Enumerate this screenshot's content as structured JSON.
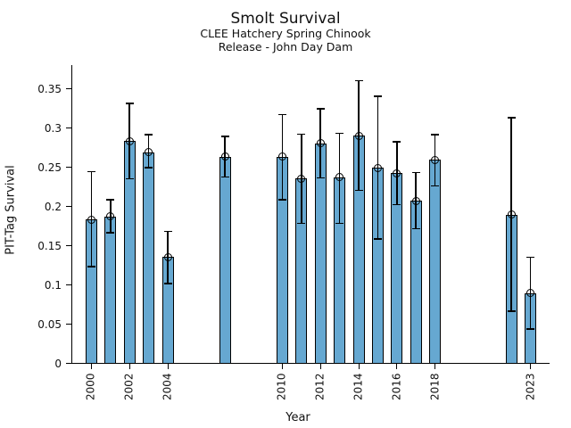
{
  "chart_data": {
    "type": "bar",
    "title": "Smolt Survival",
    "subtitle": [
      "CLEE Hatchery Spring Chinook",
      "Release - John Day Dam"
    ],
    "xlabel": "Year",
    "ylabel": "PIT-Tag Survival",
    "xlim": [
      1999,
      2024
    ],
    "ylim": [
      0,
      0.38
    ],
    "grid": false,
    "legend": "none",
    "bar_color": "#66a8d1",
    "bar_edge_color": "#000000",
    "error_bar_color": "#000000",
    "marker_style": "open-circle",
    "yticks": [
      {
        "value": 0,
        "label": "0"
      },
      {
        "value": 0.05,
        "label": "0.05"
      },
      {
        "value": 0.1,
        "label": "0.1"
      },
      {
        "value": 0.15,
        "label": "0.15"
      },
      {
        "value": 0.2,
        "label": "0.2"
      },
      {
        "value": 0.25,
        "label": "0.25"
      },
      {
        "value": 0.3,
        "label": "0.3"
      },
      {
        "value": 0.35,
        "label": "0.35"
      }
    ],
    "xticks": [
      {
        "value": 2000,
        "label": "2000"
      },
      {
        "value": 2002,
        "label": "2002"
      },
      {
        "value": 2004,
        "label": "2004"
      },
      {
        "value": 2010,
        "label": "2010"
      },
      {
        "value": 2012,
        "label": "2012"
      },
      {
        "value": 2014,
        "label": "2014"
      },
      {
        "value": 2016,
        "label": "2016"
      },
      {
        "value": 2018,
        "label": "2018"
      },
      {
        "value": 2023,
        "label": "2023"
      }
    ],
    "points": [
      {
        "year": 2000,
        "value": 0.183,
        "err_lo": 0.123,
        "err_hi": 0.244
      },
      {
        "year": 2001,
        "value": 0.187,
        "err_lo": 0.166,
        "err_hi": 0.208
      },
      {
        "year": 2002,
        "value": 0.283,
        "err_lo": 0.235,
        "err_hi": 0.331
      },
      {
        "year": 2003,
        "value": 0.269,
        "err_lo": 0.249,
        "err_hi": 0.291
      },
      {
        "year": 2004,
        "value": 0.135,
        "err_lo": 0.101,
        "err_hi": 0.168
      },
      {
        "year": 2007,
        "value": 0.263,
        "err_lo": 0.237,
        "err_hi": 0.289
      },
      {
        "year": 2010,
        "value": 0.263,
        "err_lo": 0.208,
        "err_hi": 0.317
      },
      {
        "year": 2011,
        "value": 0.235,
        "err_lo": 0.178,
        "err_hi": 0.292
      },
      {
        "year": 2012,
        "value": 0.28,
        "err_lo": 0.236,
        "err_hi": 0.324
      },
      {
        "year": 2013,
        "value": 0.237,
        "err_lo": 0.178,
        "err_hi": 0.293
      },
      {
        "year": 2014,
        "value": 0.29,
        "err_lo": 0.22,
        "err_hi": 0.36
      },
      {
        "year": 2015,
        "value": 0.249,
        "err_lo": 0.158,
        "err_hi": 0.34
      },
      {
        "year": 2016,
        "value": 0.242,
        "err_lo": 0.202,
        "err_hi": 0.282
      },
      {
        "year": 2017,
        "value": 0.207,
        "err_lo": 0.171,
        "err_hi": 0.243
      },
      {
        "year": 2018,
        "value": 0.259,
        "err_lo": 0.226,
        "err_hi": 0.291
      },
      {
        "year": 2022,
        "value": 0.189,
        "err_lo": 0.066,
        "err_hi": 0.313
      },
      {
        "year": 2023,
        "value": 0.089,
        "err_lo": 0.043,
        "err_hi": 0.135
      }
    ]
  }
}
